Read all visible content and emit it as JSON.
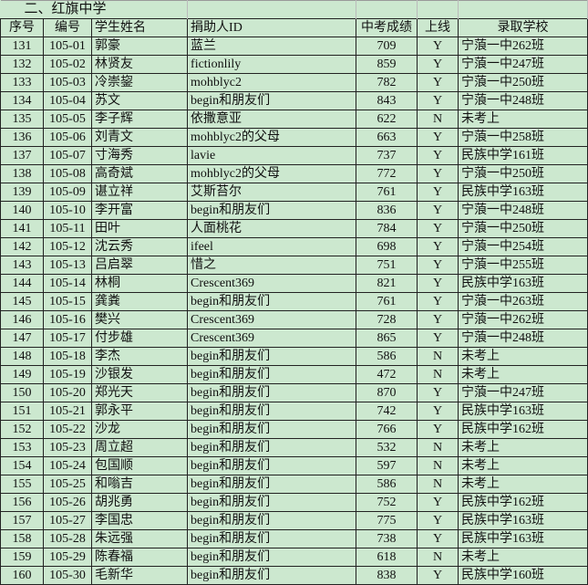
{
  "sheet": {
    "section_title": "二、红旗中学",
    "headers": [
      "序号",
      "编号",
      "学生姓名",
      "捐助人ID",
      "中考成绩",
      "上线",
      "录取学校"
    ],
    "rows": [
      [
        "131",
        "105-01",
        "郭豪",
        "蓝兰",
        "709",
        "Y",
        "宁蒗一中262班"
      ],
      [
        "132",
        "105-02",
        "林贤友",
        "fictionlily",
        "859",
        "Y",
        "宁蒗一中247班"
      ],
      [
        "133",
        "105-03",
        "冷崇鋆",
        "mohblyc2",
        "782",
        "Y",
        "宁蒗一中250班"
      ],
      [
        "134",
        "105-04",
        "苏文",
        "begin和朋友们",
        "843",
        "Y",
        "宁蒗一中248班"
      ],
      [
        "135",
        "105-05",
        "李子辉",
        "依撒意亚",
        "622",
        "N",
        "未考上"
      ],
      [
        "136",
        "105-06",
        "刘青文",
        "mohblyc2的父母",
        "663",
        "Y",
        "宁蒗一中258班"
      ],
      [
        "137",
        "105-07",
        "寸海秀",
        "lavie",
        "737",
        "Y",
        "民族中学161班"
      ],
      [
        "138",
        "105-08",
        "高奇斌",
        "mohblyc2的父母",
        "772",
        "Y",
        "宁蒗一中250班"
      ],
      [
        "139",
        "105-09",
        "谌立祥",
        "艾斯苔尔",
        "761",
        "Y",
        "民族中学163班"
      ],
      [
        "140",
        "105-10",
        "李开富",
        "begin和朋友们",
        "836",
        "Y",
        "宁蒗一中248班"
      ],
      [
        "141",
        "105-11",
        "田叶",
        "人面桃花",
        "784",
        "Y",
        "宁蒗一中250班"
      ],
      [
        "142",
        "105-12",
        "沈云秀",
        "ifeel",
        "698",
        "Y",
        "宁蒗一中254班"
      ],
      [
        "143",
        "105-13",
        "吕启翠",
        "惜之",
        "751",
        "Y",
        "宁蒗一中255班"
      ],
      [
        "144",
        "105-14",
        "林桐",
        "Crescent369",
        "821",
        "Y",
        "民族中学163班"
      ],
      [
        "145",
        "105-15",
        "龚粪",
        "begin和朋友们",
        "761",
        "Y",
        "宁蒗一中263班"
      ],
      [
        "146",
        "105-16",
        "樊兴",
        "Crescent369",
        "728",
        "Y",
        "宁蒗一中262班"
      ],
      [
        "147",
        "105-17",
        "付步雄",
        "Crescent369",
        "865",
        "Y",
        "宁蒗一中248班"
      ],
      [
        "148",
        "105-18",
        "李杰",
        "begin和朋友们",
        "586",
        "N",
        "未考上"
      ],
      [
        "149",
        "105-19",
        "沙银发",
        "begin和朋友们",
        "472",
        "N",
        "未考上"
      ],
      [
        "150",
        "105-20",
        "郑光天",
        "begin和朋友们",
        "870",
        "Y",
        "宁蒗一中247班"
      ],
      [
        "151",
        "105-21",
        "郭永平",
        "begin和朋友们",
        "742",
        "Y",
        "民族中学163班"
      ],
      [
        "152",
        "105-22",
        "沙龙",
        "begin和朋友们",
        "766",
        "Y",
        "民族中学162班"
      ],
      [
        "153",
        "105-23",
        "周立超",
        "begin和朋友们",
        "532",
        "N",
        "未考上"
      ],
      [
        "154",
        "105-24",
        "包国顺",
        "begin和朋友们",
        "597",
        "N",
        "未考上"
      ],
      [
        "155",
        "105-25",
        "和嗡吉",
        "begin和朋友们",
        "586",
        "N",
        "未考上"
      ],
      [
        "156",
        "105-26",
        "胡兆勇",
        "begin和朋友们",
        "752",
        "Y",
        "民族中学162班"
      ],
      [
        "157",
        "105-27",
        "李国忠",
        "begin和朋友们",
        "775",
        "Y",
        "民族中学163班"
      ],
      [
        "158",
        "105-28",
        "朱远强",
        "begin和朋友们",
        "738",
        "Y",
        "民族中学163班"
      ],
      [
        "159",
        "105-29",
        "陈春福",
        "begin和朋友们",
        "618",
        "N",
        "未考上"
      ],
      [
        "160",
        "105-30",
        "毛新华",
        "begin和朋友们",
        "838",
        "Y",
        "民族中学160班"
      ]
    ]
  }
}
